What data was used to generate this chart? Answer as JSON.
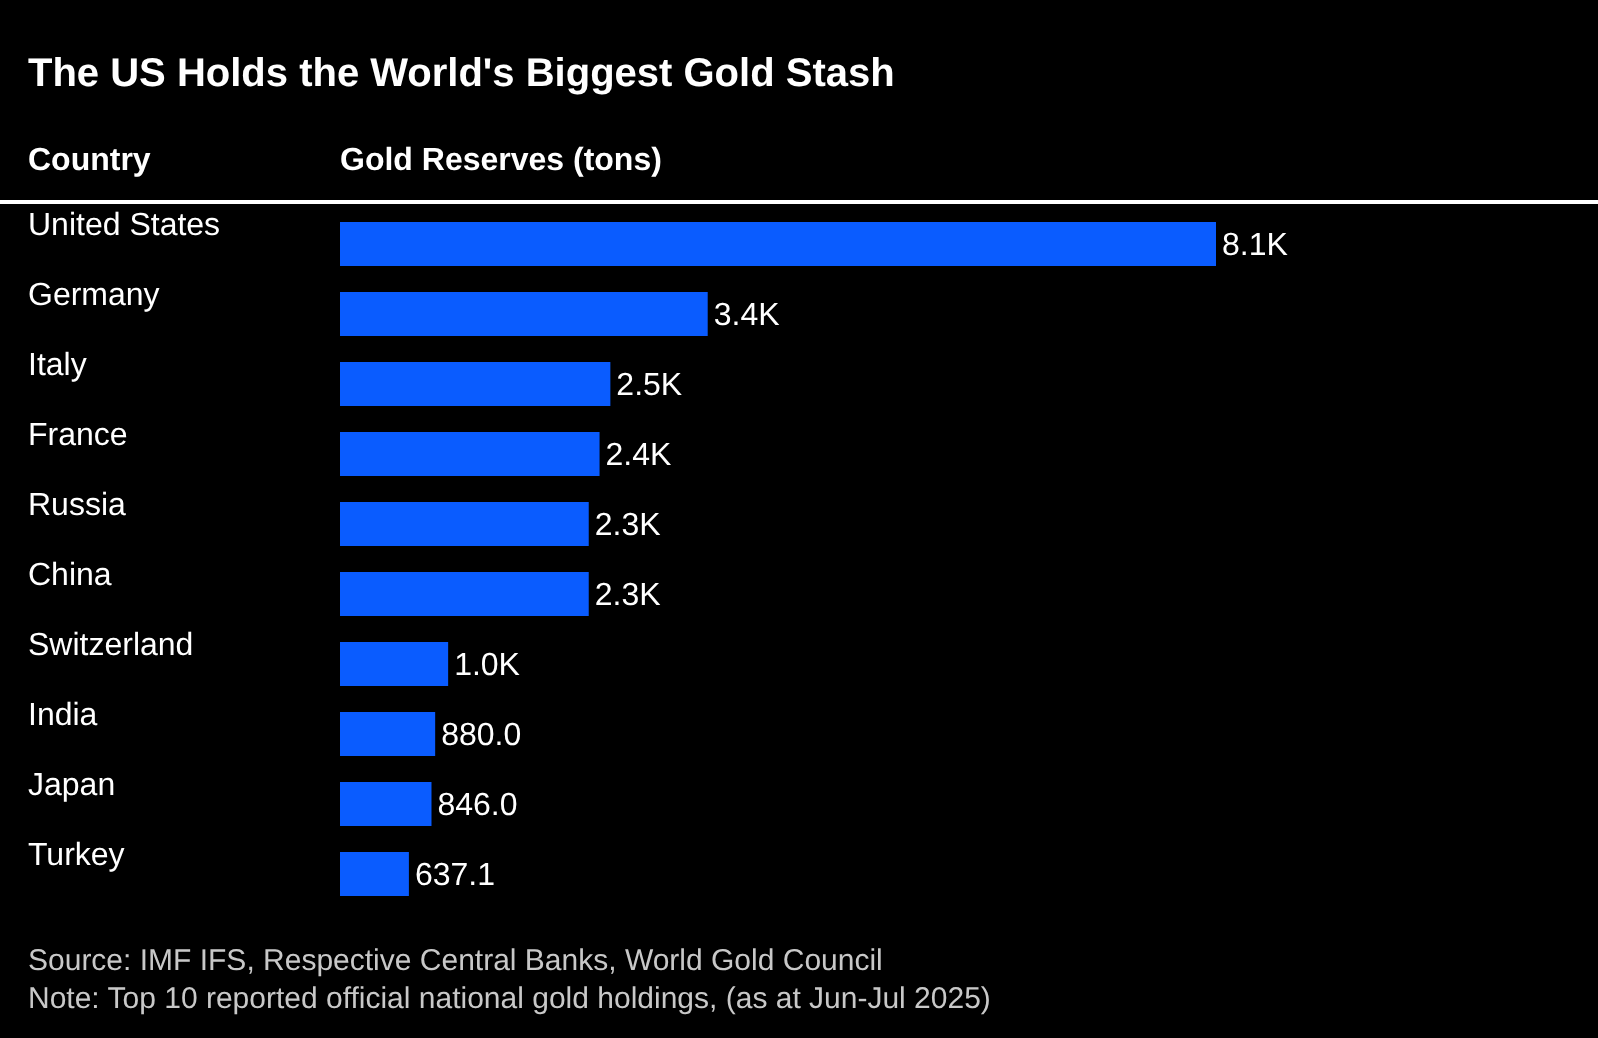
{
  "chart_data": {
    "type": "bar",
    "orientation": "horizontal",
    "title": "The US Holds the World's Biggest Gold Stash",
    "ylabel": "Country",
    "xlabel": "Gold Reserves (tons)",
    "categories": [
      "United States",
      "Germany",
      "Italy",
      "France",
      "Russia",
      "China",
      "Switzerland",
      "India",
      "Japan",
      "Turkey"
    ],
    "values": [
      8100,
      3400,
      2500,
      2400,
      2300,
      2300,
      1000,
      880,
      846,
      637.1
    ],
    "value_labels": [
      "8.1K",
      "3.4K",
      "2.5K",
      "2.4K",
      "2.3K",
      "2.3K",
      "1.0K",
      "880.0",
      "846.0",
      "637.1"
    ],
    "color": "#0a5cff",
    "grid": false,
    "legend": false,
    "annotations": [
      "Source: IMF IFS, Respective Central Banks, World Gold Council",
      "Note: Top 10 reported official national gold holdings, (as at Jun-Jul 2025)"
    ]
  }
}
